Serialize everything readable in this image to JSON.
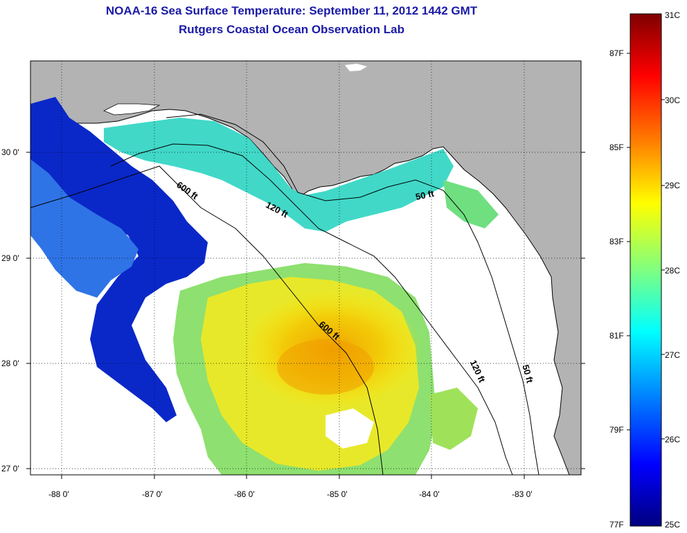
{
  "header": {
    "title": "NOAA-16 Sea Surface Temperature:  September 11, 2012 1442 GMT",
    "subtitle": "Rutgers Coastal Ocean Observation Lab"
  },
  "axes": {
    "lon_ticks": [
      "-88 0'",
      "-87 0'",
      "-86 0'",
      "-85 0'",
      "-84 0'",
      "-83 0'"
    ],
    "lat_ticks": [
      "30 0'",
      "29 0'",
      "28 0'",
      "27 0'"
    ]
  },
  "contours": {
    "labels": [
      "600 ft",
      "120 ft",
      "50 ft",
      "600 ft",
      "120 ft",
      "50 ft"
    ]
  },
  "colorbar": {
    "celsius_labels": [
      "31C",
      "30C",
      "29C",
      "28C",
      "27C",
      "26C",
      "25C"
    ],
    "fahrenheit_labels": [
      "87F",
      "85F",
      "83F",
      "81F",
      "79F",
      "77F"
    ],
    "colors": [
      "#7f0000",
      "#ff0000",
      "#ff7f00",
      "#ffff00",
      "#7fff7f",
      "#00ffff",
      "#007fff",
      "#0000ff",
      "#00007f"
    ]
  },
  "colors": {
    "land": "#b3b3b3",
    "cloud": "#ffffff",
    "title": "#1a1aa6"
  }
}
